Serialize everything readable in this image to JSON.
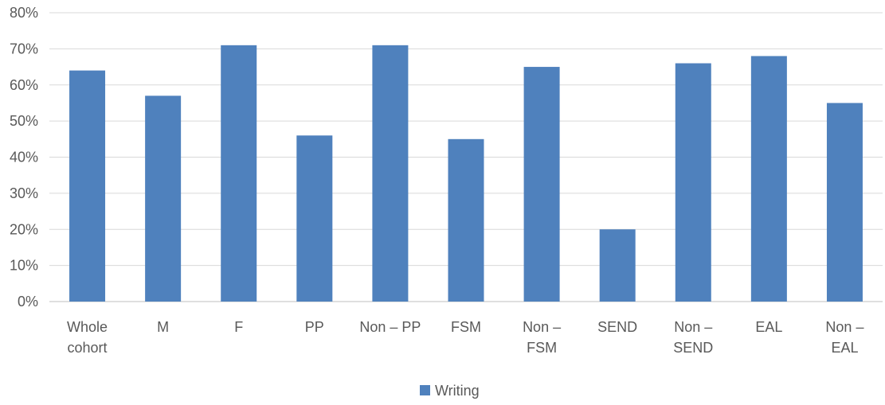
{
  "chart_data": {
    "type": "bar",
    "categories": [
      [
        "Whole",
        "cohort"
      ],
      [
        "M"
      ],
      [
        "F"
      ],
      [
        "PP"
      ],
      [
        "Non – PP"
      ],
      [
        "FSM"
      ],
      [
        "Non –",
        "FSM"
      ],
      [
        "SEND"
      ],
      [
        "Non –",
        "SEND"
      ],
      [
        "EAL"
      ],
      [
        "Non –",
        "EAL"
      ]
    ],
    "series": [
      {
        "name": "Writing",
        "color": "#4F81BD",
        "values": [
          64,
          57,
          71,
          46,
          71,
          45,
          65,
          20,
          66,
          68,
          55
        ]
      }
    ],
    "ylim": [
      0,
      80
    ],
    "yticks": [
      "0%",
      "10%",
      "20%",
      "30%",
      "40%",
      "50%",
      "60%",
      "70%",
      "80%"
    ],
    "grid": true,
    "legend_position": "bottom"
  }
}
